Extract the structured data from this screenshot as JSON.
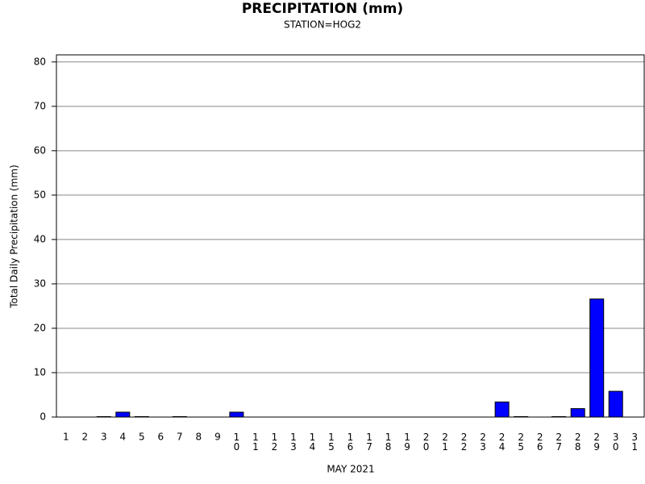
{
  "chart_data": {
    "type": "bar",
    "title": "PRECIPITATION (mm)",
    "subtitle": "STATION=HOG2",
    "x_label": "MAY 2021",
    "y_label": "Total Daily Precipitation (mm)",
    "categories": [
      "1",
      "2",
      "3",
      "4",
      "5",
      "6",
      "7",
      "8",
      "9",
      "10",
      "11",
      "12",
      "13",
      "14",
      "15",
      "16",
      "17",
      "18",
      "19",
      "20",
      "21",
      "22",
      "23",
      "24",
      "25",
      "26",
      "27",
      "28",
      "29",
      "30",
      "31"
    ],
    "values": [
      0,
      0,
      0.1,
      1.1,
      0.1,
      0,
      0.1,
      0,
      0,
      1.1,
      0,
      0,
      0,
      0,
      0,
      0,
      0,
      0,
      0,
      0,
      0,
      0,
      0,
      3.4,
      0.1,
      0,
      0.1,
      1.9,
      26.6,
      5.8,
      0
    ],
    "color": "#0000ff",
    "ylim": [
      0,
      81.6
    ],
    "yticks": [
      0,
      10,
      20,
      30,
      40,
      50,
      60,
      70,
      80
    ],
    "grid": true
  }
}
